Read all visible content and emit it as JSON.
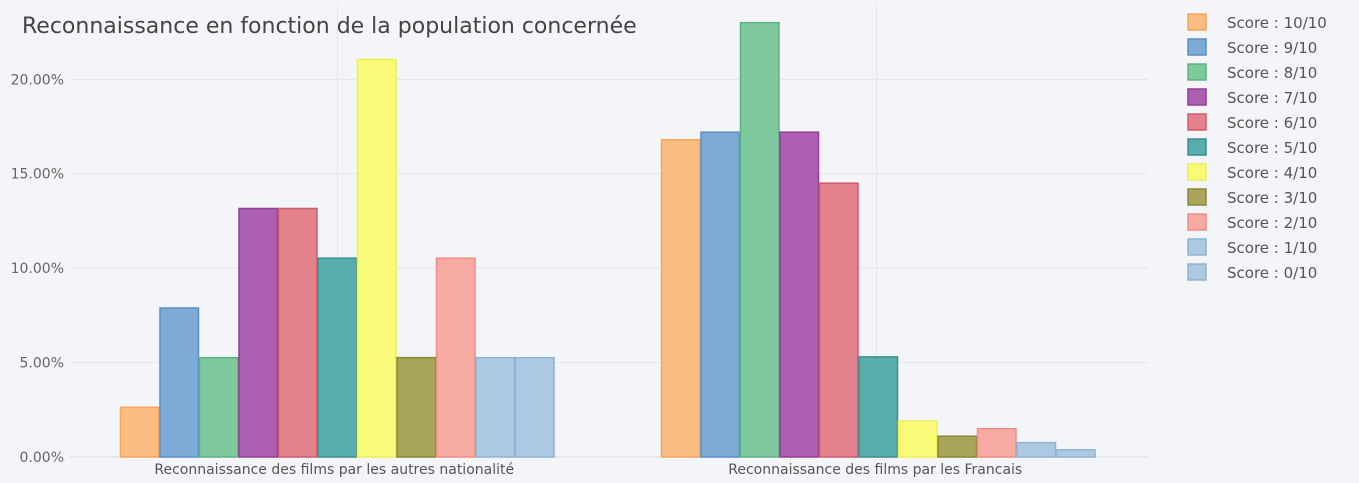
{
  "chart_data": {
    "type": "bar",
    "title": "Reconnaissance en fonction de la population concernée",
    "xlabel": "",
    "ylabel": "",
    "ylim": [
      0,
      24.2
    ],
    "y_ticks": [
      0,
      5,
      10,
      15,
      20
    ],
    "y_tick_labels": [
      "0.00%",
      "5.00%",
      "10.00%",
      "15.00%",
      "20.00%"
    ],
    "grid": true,
    "legend_position": "right",
    "categories": [
      "Reconnaissance des films par les autres nationalité",
      "Reconnaissance des films par les Francais"
    ],
    "series": [
      {
        "name": "Score : 10/10",
        "color": "#fbbc82",
        "border": "#f5a55a",
        "values": [
          2.63,
          16.8
        ]
      },
      {
        "name": "Score : 9/10",
        "color": "#7eaad6",
        "border": "#5b8fc6",
        "values": [
          7.89,
          17.2
        ]
      },
      {
        "name": "Score : 8/10",
        "color": "#7fc99e",
        "border": "#5bb37f",
        "values": [
          5.26,
          23.0
        ]
      },
      {
        "name": "Score : 7/10",
        "color": "#ad5fb1",
        "border": "#8e3f95",
        "values": [
          13.16,
          17.2
        ]
      },
      {
        "name": "Score : 6/10",
        "color": "#e2808c",
        "border": "#cc5d6c",
        "values": [
          13.16,
          14.5
        ]
      },
      {
        "name": "Score : 5/10",
        "color": "#5aadad",
        "border": "#3a8f8f",
        "values": [
          10.53,
          5.3
        ]
      },
      {
        "name": "Score : 4/10",
        "color": "#fafa79",
        "border": "#eeee55",
        "values": [
          21.05,
          1.9
        ]
      },
      {
        "name": "Score : 3/10",
        "color": "#a9a55a",
        "border": "#8a8639",
        "values": [
          5.26,
          1.1
        ]
      },
      {
        "name": "Score : 2/10",
        "color": "#f7aaa2",
        "border": "#ee8e86",
        "values": [
          10.53,
          1.5
        ]
      },
      {
        "name": "Score : 1/10",
        "color": "#acc9e1",
        "border": "#8db3d6",
        "values": [
          5.26,
          0.76
        ]
      },
      {
        "name": "Score : 0/10",
        "color": "#acc9e1",
        "border": "#8db3d6",
        "values": [
          5.26,
          0.38
        ]
      }
    ]
  }
}
